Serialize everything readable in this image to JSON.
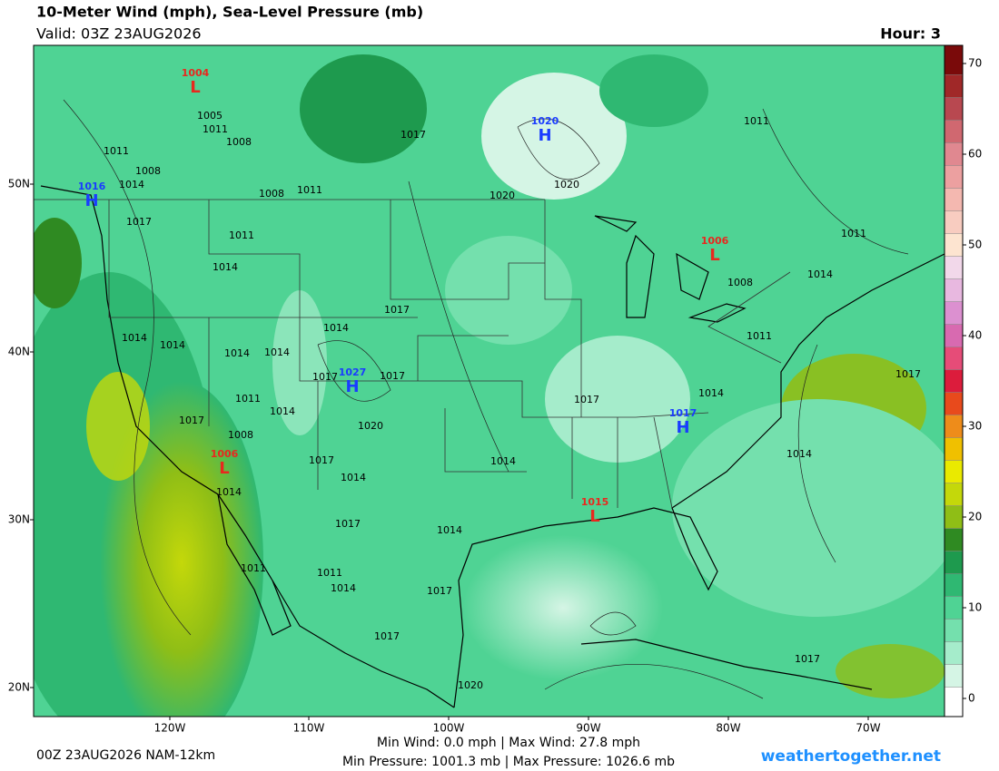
{
  "header": {
    "title": "10-Meter Wind (mph), Sea-Level Pressure (mb)",
    "valid": "Valid: 03Z 23AUG2026",
    "hour": "Hour: 3"
  },
  "map": {
    "lat_labels": [
      "50N",
      "40N",
      "30N",
      "20N"
    ],
    "lon_labels": [
      "120W",
      "110W",
      "100W",
      "90W",
      "80W",
      "70W"
    ],
    "pressure_centers": [
      {
        "symbol": "L",
        "value": 1004
      },
      {
        "symbol": "H",
        "value": 1020
      },
      {
        "symbol": "H",
        "value": 1016
      },
      {
        "symbol": "L",
        "value": 1006
      },
      {
        "symbol": "H",
        "value": 1027
      },
      {
        "symbol": "H",
        "value": 1017
      },
      {
        "symbol": "L",
        "value": 1006
      },
      {
        "symbol": "L",
        "value": 1015
      }
    ],
    "isobar_labels": [
      1005,
      1011,
      1008,
      1011,
      1008,
      1014,
      1017,
      1020,
      1020,
      1011,
      1008,
      1011,
      1011,
      1014,
      1014,
      1017,
      1014,
      1014,
      1014,
      1014,
      1017,
      1017,
      1011,
      1014,
      1017,
      1020,
      1008,
      1017,
      1014,
      1014,
      1017,
      1014,
      1014,
      1017,
      1011,
      1008,
      1014,
      1011,
      1014,
      1017,
      1014,
      1011,
      1011,
      1014,
      1017,
      1017,
      1020,
      1017,
      1017
    ]
  },
  "colorbar": {
    "ticks": [
      0,
      10,
      20,
      30,
      40,
      50,
      60,
      70
    ],
    "colors": [
      "#ffffff",
      "#d5f5e5",
      "#a5eccb",
      "#74e0ad",
      "#4fd394",
      "#2fb872",
      "#1e9a4e",
      "#2f8a22",
      "#8fbe16",
      "#c4d80a",
      "#eaea00",
      "#f0c000",
      "#ee8c1a",
      "#e84a1c",
      "#dc1c3c",
      "#e64c78",
      "#d86ab0",
      "#dc90d0",
      "#e8b8e0",
      "#f2d8ea",
      "#fde4d0",
      "#f8ccc0",
      "#f4b8b0",
      "#eca0a0",
      "#e08890",
      "#d06870",
      "#b84850",
      "#a02828",
      "#7a0a0a"
    ]
  },
  "footer": {
    "run": "00Z 23AUG2026 NAM-12km",
    "wind_stats": "Min Wind:   0.0 mph | Max Wind: 27.8 mph",
    "pressure_stats": "Min Pressure: 1001.3 mb | Max Pressure: 1026.6 mb",
    "site": "weathertogether.net"
  }
}
